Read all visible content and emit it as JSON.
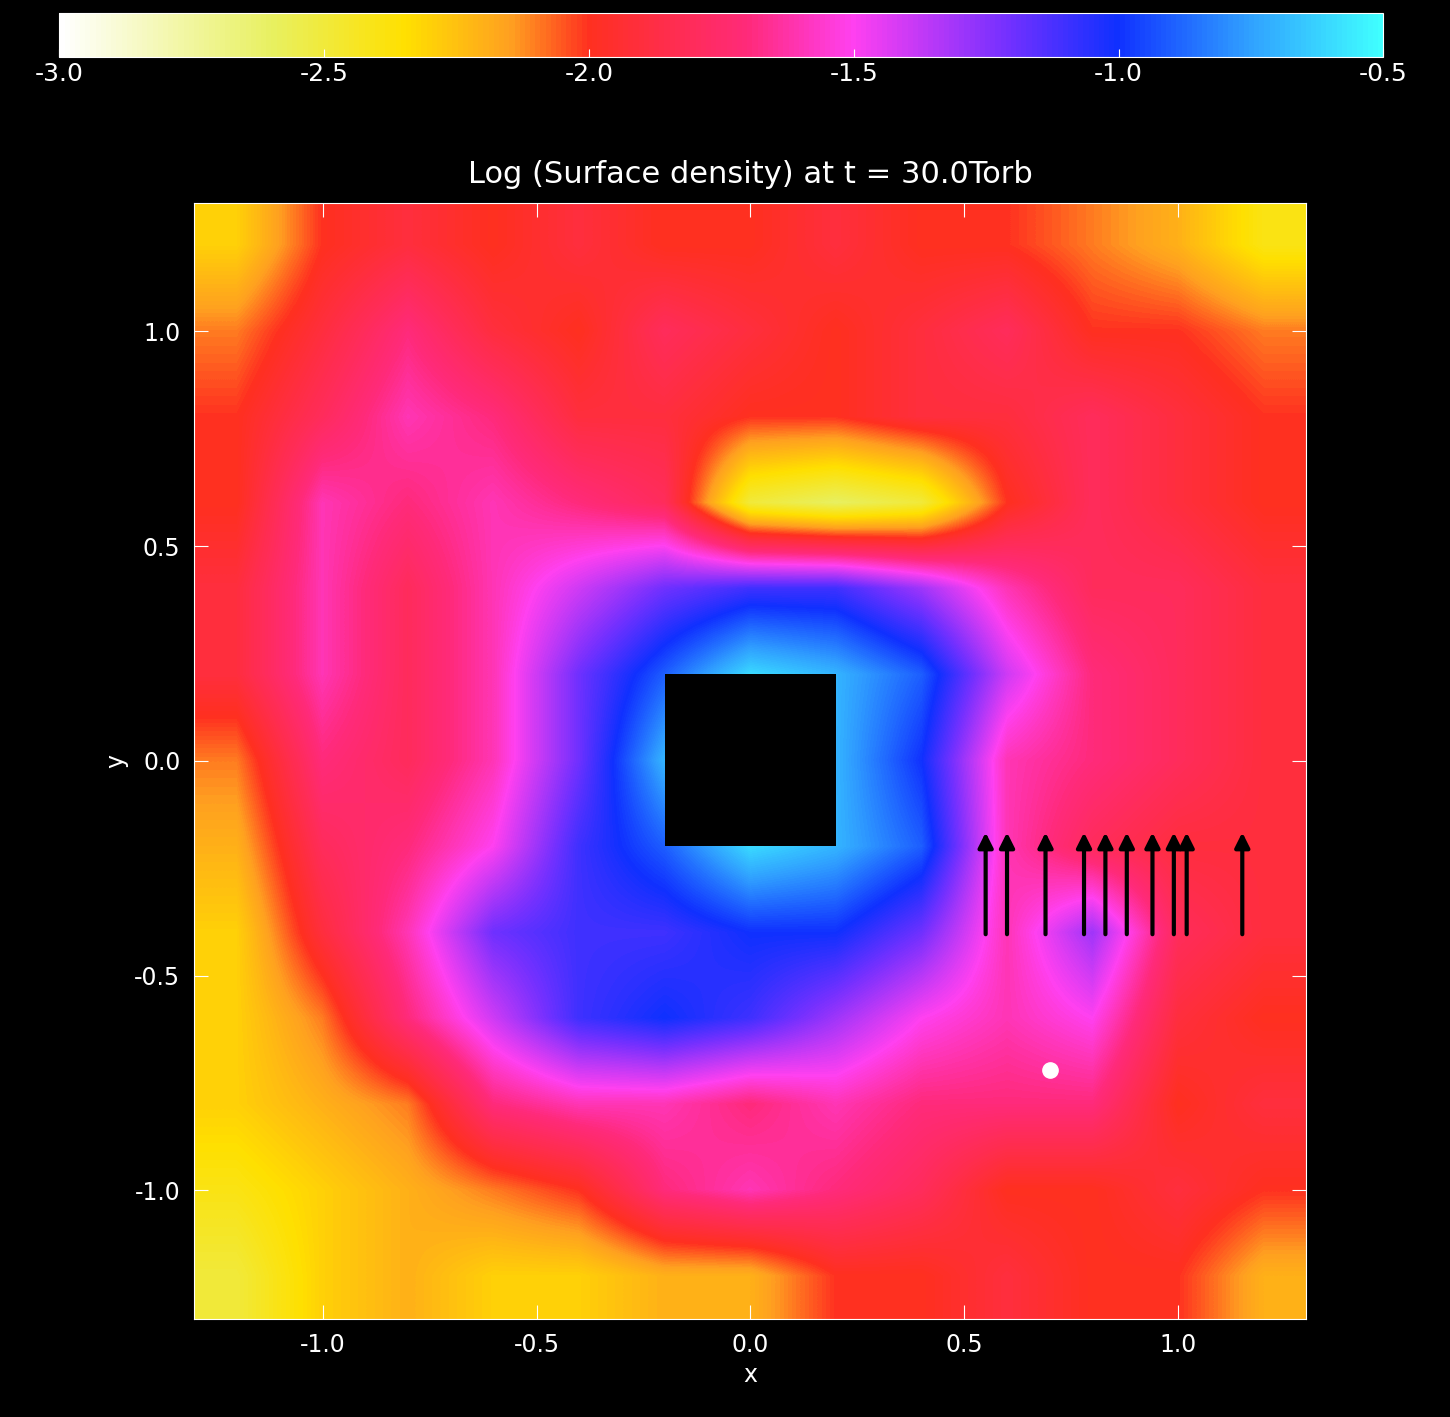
{
  "chart_data": {
    "type": "heatmap",
    "title": "Log (Surface density) at t = 30.0Torb",
    "x_label": "x",
    "y_label": "y",
    "xlim": [
      -1.3,
      1.3
    ],
    "ylim": [
      -1.3,
      1.3
    ],
    "xticks": [
      {
        "value": -1.0,
        "label": "-1.0"
      },
      {
        "value": -0.5,
        "label": "-0.5"
      },
      {
        "value": 0.0,
        "label": "0.0"
      },
      {
        "value": 0.5,
        "label": "0.5"
      },
      {
        "value": 1.0,
        "label": "1.0"
      }
    ],
    "yticks": [
      {
        "value": -1.0,
        "label": "-1.0"
      },
      {
        "value": -0.5,
        "label": "-0.5"
      },
      {
        "value": 0.0,
        "label": "0.0"
      },
      {
        "value": 0.5,
        "label": "0.5"
      },
      {
        "value": 1.0,
        "label": "1.0"
      }
    ],
    "colorbar_range": [
      -3.0,
      -0.5
    ],
    "colorbar_ticks": [
      {
        "value": -3.0,
        "label": "-3.0"
      },
      {
        "value": -2.5,
        "label": "-2.5"
      },
      {
        "value": -2.0,
        "label": "-2.0"
      },
      {
        "value": -1.5,
        "label": "-1.5"
      },
      {
        "value": -1.0,
        "label": "-1.0"
      },
      {
        "value": -0.5,
        "label": "-0.5"
      }
    ],
    "x": [
      -1.2,
      -1.0,
      -0.8,
      -0.6,
      -0.4,
      -0.2,
      0.0,
      0.2,
      0.4,
      0.6,
      0.8,
      1.0,
      1.2
    ],
    "y": [
      1.2,
      1.0,
      0.8,
      0.6,
      0.4,
      0.2,
      0.0,
      -0.2,
      -0.4,
      -0.6,
      -0.8,
      -1.0,
      -1.2
    ],
    "cells": [
      [
        -2.3,
        -2.0,
        -1.9,
        -2.0,
        -1.9,
        -2.0,
        -2.0,
        -1.9,
        -2.0,
        -2.0,
        -2.1,
        -2.2,
        -2.4
      ],
      [
        -2.1,
        -1.9,
        -1.7,
        -1.9,
        -2.0,
        -1.8,
        -1.9,
        -2.0,
        -1.9,
        -1.8,
        -2.0,
        -2.0,
        -2.1
      ],
      [
        -2.0,
        -1.8,
        -1.6,
        -1.7,
        -1.9,
        -1.9,
        -2.0,
        -2.0,
        -1.9,
        -1.9,
        -1.8,
        -1.9,
        -2.0
      ],
      [
        -2.0,
        -1.6,
        -1.7,
        -1.6,
        -1.7,
        -1.8,
        -2.5,
        -2.6,
        -2.5,
        -2.0,
        -1.8,
        -1.9,
        -2.0
      ],
      [
        -1.9,
        -1.6,
        -1.8,
        -1.6,
        -1.4,
        -1.2,
        -1.1,
        -1.1,
        -1.3,
        -1.6,
        -1.8,
        -1.8,
        -1.9
      ],
      [
        -1.9,
        -1.6,
        -1.8,
        -1.6,
        -1.2,
        -0.9,
        -0.6,
        -0.7,
        -0.9,
        -1.4,
        -1.7,
        -1.8,
        -1.9
      ],
      [
        -2.1,
        -1.7,
        -1.8,
        -1.6,
        -1.2,
        -0.7,
        null,
        -0.7,
        -1.0,
        -1.6,
        -1.7,
        -1.8,
        -1.9
      ],
      [
        -2.2,
        -1.8,
        -1.7,
        -1.5,
        -1.1,
        -0.9,
        -0.6,
        -0.7,
        -0.9,
        -1.6,
        -1.8,
        -1.9,
        -1.9
      ],
      [
        -2.3,
        -1.9,
        -1.6,
        -1.2,
        -1.1,
        -1.1,
        -1.0,
        -1.0,
        -1.2,
        -1.6,
        -1.3,
        -1.8,
        -1.9
      ],
      [
        -2.3,
        -2.1,
        -1.7,
        -1.4,
        -1.1,
        -1.0,
        -1.1,
        -1.3,
        -1.5,
        -1.6,
        -1.5,
        -1.9,
        -2.0
      ],
      [
        -2.3,
        -2.2,
        -2.1,
        -1.7,
        -1.6,
        -1.6,
        -1.7,
        -1.6,
        -1.7,
        -1.7,
        -1.7,
        -2.0,
        -1.9
      ],
      [
        -2.4,
        -2.3,
        -2.2,
        -2.1,
        -2.0,
        -1.7,
        -1.6,
        -1.7,
        -1.8,
        -2.0,
        -2.0,
        -1.9,
        -2.0
      ],
      [
        -2.5,
        -2.3,
        -2.2,
        -2.3,
        -2.3,
        -2.2,
        -2.2,
        -2.0,
        -2.0,
        -1.9,
        -2.0,
        -2.0,
        -2.2
      ]
    ],
    "grid": false
  }
}
